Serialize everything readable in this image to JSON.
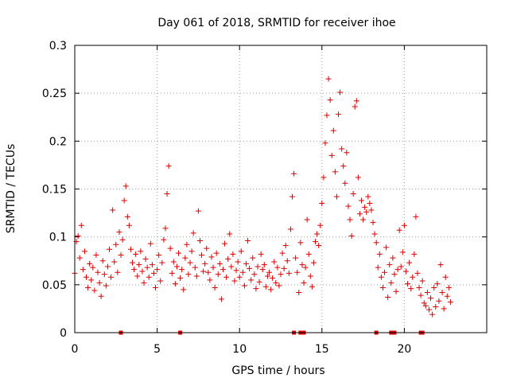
{
  "chart_data": {
    "type": "scatter",
    "title": "Day 061 of 2018, SRMTID for receiver ihoe",
    "xlabel": "GPS time / hours",
    "ylabel": "SRMTID / TECUs",
    "xlim": [
      0,
      25
    ],
    "ylim": [
      0,
      0.3
    ],
    "x_ticks": [
      0,
      5,
      10,
      15,
      20
    ],
    "x_tick_labels": [
      "0",
      "5",
      "10",
      "15",
      "20"
    ],
    "y_ticks": [
      0,
      0.05,
      0.1,
      0.15,
      0.2,
      0.25,
      0.3
    ],
    "y_tick_labels": [
      "0",
      "0.05",
      "0.1",
      "0.15",
      "0.2",
      "0.25",
      "0.3"
    ],
    "grid": true,
    "marker": "+",
    "marker_color": "#dd0000",
    "series": [
      {
        "name": "SRMTID",
        "points": [
          [
            0.0,
            0.062
          ],
          [
            0.1,
            0.095
          ],
          [
            0.2,
            0.101
          ],
          [
            0.3,
            0.078
          ],
          [
            0.4,
            0.112
          ],
          [
            0.5,
            0.066
          ],
          [
            0.6,
            0.085
          ],
          [
            0.7,
            0.058
          ],
          [
            0.8,
            0.047
          ],
          [
            0.9,
            0.072
          ],
          [
            1.0,
            0.055
          ],
          [
            1.1,
            0.068
          ],
          [
            1.2,
            0.044
          ],
          [
            1.3,
            0.081
          ],
          [
            1.4,
            0.063
          ],
          [
            1.5,
            0.052
          ],
          [
            1.6,
            0.038
          ],
          [
            1.7,
            0.075
          ],
          [
            1.8,
            0.061
          ],
          [
            1.9,
            0.049
          ],
          [
            2.0,
            0.069
          ],
          [
            2.1,
            0.087
          ],
          [
            2.2,
            0.058
          ],
          [
            2.3,
            0.128
          ],
          [
            2.4,
            0.074
          ],
          [
            2.5,
            0.092
          ],
          [
            2.6,
            0.063
          ],
          [
            2.7,
            0.105
          ],
          [
            2.8,
            0.081
          ],
          [
            2.9,
            0.097
          ],
          [
            3.0,
            0.138
          ],
          [
            3.1,
            0.153
          ],
          [
            3.2,
            0.121
          ],
          [
            3.3,
            0.112
          ],
          [
            3.4,
            0.087
          ],
          [
            3.5,
            0.073
          ],
          [
            3.6,
            0.066
          ],
          [
            3.7,
            0.082
          ],
          [
            3.8,
            0.059
          ],
          [
            3.9,
            0.071
          ],
          [
            4.0,
            0.085
          ],
          [
            4.1,
            0.064
          ],
          [
            4.2,
            0.052
          ],
          [
            4.3,
            0.077
          ],
          [
            4.4,
            0.068
          ],
          [
            4.5,
            0.058
          ],
          [
            4.6,
            0.093
          ],
          [
            4.7,
            0.071
          ],
          [
            4.8,
            0.062
          ],
          [
            4.9,
            0.047
          ],
          [
            5.0,
            0.066
          ],
          [
            5.1,
            0.081
          ],
          [
            5.2,
            0.054
          ],
          [
            5.3,
            0.073
          ],
          [
            5.4,
            0.097
          ],
          [
            5.5,
            0.109
          ],
          [
            5.6,
            0.145
          ],
          [
            5.7,
            0.174
          ],
          [
            5.8,
            0.088
          ],
          [
            5.9,
            0.062
          ],
          [
            6.0,
            0.074
          ],
          [
            6.1,
            0.051
          ],
          [
            6.2,
            0.069
          ],
          [
            6.3,
            0.083
          ],
          [
            6.4,
            0.057
          ],
          [
            6.5,
            0.066
          ],
          [
            6.6,
            0.045
          ],
          [
            6.7,
            0.078
          ],
          [
            6.8,
            0.092
          ],
          [
            6.9,
            0.061
          ],
          [
            7.0,
            0.073
          ],
          [
            7.1,
            0.085
          ],
          [
            7.2,
            0.104
          ],
          [
            7.3,
            0.068
          ],
          [
            7.4,
            0.059
          ],
          [
            7.5,
            0.127
          ],
          [
            7.6,
            0.096
          ],
          [
            7.7,
            0.081
          ],
          [
            7.8,
            0.064
          ],
          [
            7.9,
            0.072
          ],
          [
            8.0,
            0.088
          ],
          [
            8.1,
            0.063
          ],
          [
            8.2,
            0.055
          ],
          [
            8.3,
            0.079
          ],
          [
            8.4,
            0.068
          ],
          [
            8.5,
            0.047
          ],
          [
            8.6,
            0.083
          ],
          [
            8.7,
            0.061
          ],
          [
            8.8,
            0.072
          ],
          [
            8.9,
            0.035
          ],
          [
            9.0,
            0.066
          ],
          [
            9.1,
            0.093
          ],
          [
            9.2,
            0.058
          ],
          [
            9.3,
            0.077
          ],
          [
            9.4,
            0.103
          ],
          [
            9.5,
            0.069
          ],
          [
            9.6,
            0.082
          ],
          [
            9.7,
            0.054
          ],
          [
            9.8,
            0.065
          ],
          [
            9.9,
            0.074
          ],
          [
            10.0,
            0.058
          ],
          [
            10.1,
            0.085
          ],
          [
            10.2,
            0.063
          ],
          [
            10.3,
            0.049
          ],
          [
            10.4,
            0.072
          ],
          [
            10.5,
            0.096
          ],
          [
            10.6,
            0.067
          ],
          [
            10.7,
            0.055
          ],
          [
            10.8,
            0.078
          ],
          [
            10.9,
            0.061
          ],
          [
            11.0,
            0.046
          ],
          [
            11.1,
            0.069
          ],
          [
            11.2,
            0.053
          ],
          [
            11.3,
            0.082
          ],
          [
            11.4,
            0.066
          ],
          [
            11.5,
            0.071
          ],
          [
            11.6,
            0.048
          ],
          [
            11.7,
            0.059
          ],
          [
            11.8,
            0.063
          ],
          [
            11.9,
            0.045
          ],
          [
            12.0,
            0.057
          ],
          [
            12.1,
            0.074
          ],
          [
            12.2,
            0.052
          ],
          [
            12.3,
            0.068
          ],
          [
            12.4,
            0.049
          ],
          [
            12.5,
            0.061
          ],
          [
            12.6,
            0.083
          ],
          [
            12.7,
            0.067
          ],
          [
            12.8,
            0.091
          ],
          [
            12.9,
            0.075
          ],
          [
            13.0,
            0.062
          ],
          [
            13.1,
            0.108
          ],
          [
            13.2,
            0.142
          ],
          [
            13.3,
            0.166
          ],
          [
            13.4,
            0.078
          ],
          [
            13.5,
            0.063
          ],
          [
            13.6,
            0.042
          ],
          [
            13.7,
            0.094
          ],
          [
            13.8,
            0.071
          ],
          [
            13.9,
            0.052
          ],
          [
            14.0,
            0.068
          ],
          [
            14.1,
            0.118
          ],
          [
            14.2,
            0.082
          ],
          [
            14.3,
            0.059
          ],
          [
            14.4,
            0.048
          ],
          [
            14.5,
            0.073
          ],
          [
            14.6,
            0.095
          ],
          [
            14.7,
            0.103
          ],
          [
            14.8,
            0.091
          ],
          [
            14.9,
            0.112
          ],
          [
            15.0,
            0.135
          ],
          [
            15.1,
            0.162
          ],
          [
            15.2,
            0.198
          ],
          [
            15.3,
            0.227
          ],
          [
            15.4,
            0.265
          ],
          [
            15.5,
            0.243
          ],
          [
            15.6,
            0.185
          ],
          [
            15.7,
            0.211
          ],
          [
            15.8,
            0.168
          ],
          [
            15.9,
            0.142
          ],
          [
            16.0,
            0.228
          ],
          [
            16.1,
            0.251
          ],
          [
            16.2,
            0.192
          ],
          [
            16.3,
            0.174
          ],
          [
            16.4,
            0.156
          ],
          [
            16.5,
            0.188
          ],
          [
            16.6,
            0.132
          ],
          [
            16.7,
            0.118
          ],
          [
            16.8,
            0.101
          ],
          [
            16.9,
            0.145
          ],
          [
            17.0,
            0.236
          ],
          [
            17.1,
            0.242
          ],
          [
            17.2,
            0.162
          ],
          [
            17.3,
            0.124
          ],
          [
            17.4,
            0.138
          ],
          [
            17.5,
            0.118
          ],
          [
            17.6,
            0.131
          ],
          [
            17.7,
            0.126
          ],
          [
            17.8,
            0.142
          ],
          [
            17.9,
            0.135
          ],
          [
            18.0,
            0.128
          ],
          [
            18.1,
            0.115
          ],
          [
            18.2,
            0.103
          ],
          [
            18.3,
            0.094
          ],
          [
            18.4,
            0.068
          ],
          [
            18.5,
            0.082
          ],
          [
            18.6,
            0.058
          ],
          [
            18.7,
            0.047
          ],
          [
            18.8,
            0.063
          ],
          [
            18.9,
            0.089
          ],
          [
            19.0,
            0.037
          ],
          [
            19.1,
            0.071
          ],
          [
            19.2,
            0.052
          ],
          [
            19.3,
            0.078
          ],
          [
            19.4,
            0.061
          ],
          [
            19.5,
            0.043
          ],
          [
            19.6,
            0.066
          ],
          [
            19.7,
            0.107
          ],
          [
            19.8,
            0.069
          ],
          [
            19.9,
            0.084
          ],
          [
            20.0,
            0.112
          ],
          [
            20.1,
            0.064
          ],
          [
            20.2,
            0.051
          ],
          [
            20.3,
            0.073
          ],
          [
            20.4,
            0.046
          ],
          [
            20.5,
            0.058
          ],
          [
            20.6,
            0.082
          ],
          [
            20.7,
            0.121
          ],
          [
            20.8,
            0.062
          ],
          [
            20.9,
            0.047
          ],
          [
            21.0,
            0.039
          ],
          [
            21.1,
            0.054
          ],
          [
            21.2,
            0.031
          ],
          [
            21.3,
            0.028
          ],
          [
            21.4,
            0.042
          ],
          [
            21.5,
            0.024
          ],
          [
            21.6,
            0.036
          ],
          [
            21.7,
            0.019
          ],
          [
            21.8,
            0.047
          ],
          [
            21.9,
            0.027
          ],
          [
            22.0,
            0.051
          ],
          [
            22.1,
            0.033
          ],
          [
            22.2,
            0.071
          ],
          [
            22.3,
            0.042
          ],
          [
            22.4,
            0.025
          ],
          [
            22.5,
            0.058
          ],
          [
            22.6,
            0.038
          ],
          [
            22.7,
            0.047
          ],
          [
            22.8,
            0.032
          ]
        ]
      }
    ],
    "gap_markers_x": [
      2.8,
      6.4,
      13.3,
      13.7,
      13.8,
      13.9,
      18.3,
      19.2,
      19.3,
      19.4,
      21.0,
      21.1
    ]
  }
}
